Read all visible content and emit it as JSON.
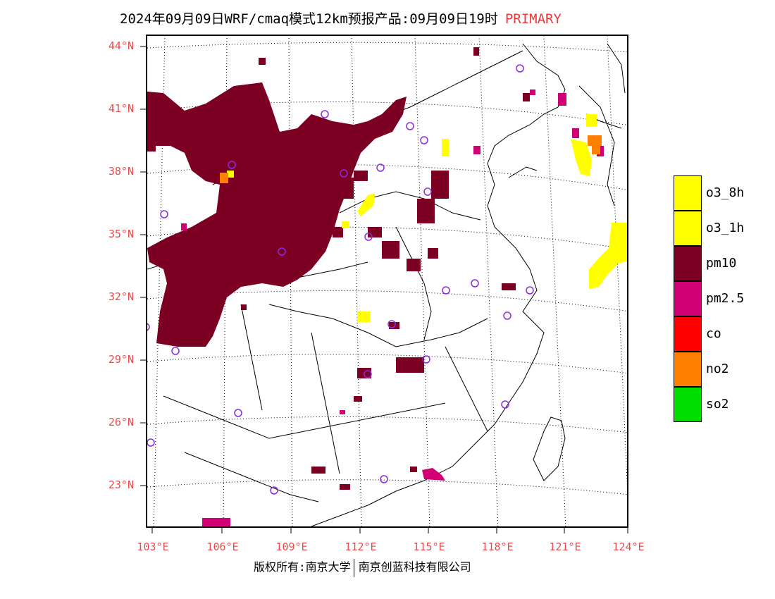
{
  "title": {
    "text": "2024年09月09日WRF/cmaq模式12km预报产品:09月09日19时",
    "status": "PRIMARY",
    "status_color": "#e83a3a"
  },
  "axes": {
    "lat_labels": [
      "44°N",
      "41°N",
      "38°N",
      "35°N",
      "32°N",
      "29°N",
      "26°N",
      "23°N"
    ],
    "lon_labels": [
      "103°E",
      "106°E",
      "109°E",
      "112°E",
      "115°E",
      "118°E",
      "121°E",
      "124°E"
    ],
    "label_color": "#e84c4c"
  },
  "legend": [
    {
      "label": "o3_8h",
      "color": "#ffff00"
    },
    {
      "label": "o3_1h",
      "color": "#ffff00"
    },
    {
      "label": "pm10",
      "color": "#7b0022"
    },
    {
      "label": "pm2.5",
      "color": "#d10074"
    },
    {
      "label": "co",
      "color": "#ff0000"
    },
    {
      "label": "no2",
      "color": "#ff7f00"
    },
    {
      "label": "so2",
      "color": "#00dd00"
    }
  ],
  "footer": {
    "left": "版权所有:南京大学",
    "right": "南京创蓝科技有限公司"
  }
}
